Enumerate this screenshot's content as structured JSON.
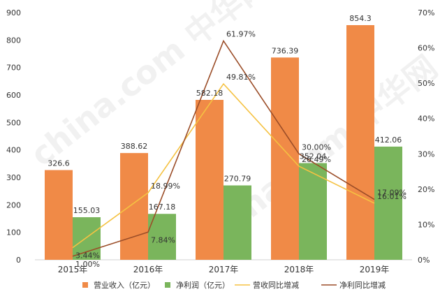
{
  "chart_data": {
    "type": "bar",
    "categories": [
      "2015年",
      "2016年",
      "2017年",
      "2018年",
      "2019年"
    ],
    "series": [
      {
        "name": "营业收入（亿元）",
        "kind": "bar",
        "axis": "left",
        "color": "#F08A47",
        "values": [
          326.6,
          388.62,
          582.18,
          736.39,
          854.3
        ],
        "labels": [
          "326.6",
          "388.62",
          "582.18",
          "736.39",
          "854.3"
        ]
      },
      {
        "name": "净利润（亿元）",
        "kind": "bar",
        "axis": "left",
        "color": "#7AB55C",
        "values": [
          155.03,
          167.18,
          270.79,
          352.04,
          412.06
        ],
        "labels": [
          "155.03",
          "167.18",
          "270.79",
          "352.04",
          "412.06"
        ]
      },
      {
        "name": "营收同比增减",
        "kind": "line",
        "axis": "right",
        "color": "#F5C242",
        "values": [
          3.44,
          18.99,
          49.81,
          26.49,
          16.01
        ],
        "labels": [
          "3.44%",
          "18.99%",
          "49.81%",
          "26.49%",
          "16.01%"
        ]
      },
      {
        "name": "净利同比增减",
        "kind": "line",
        "axis": "right",
        "color": "#9B4D28",
        "values": [
          1.0,
          7.84,
          61.97,
          30.0,
          17.09
        ],
        "labels": [
          "1.00%",
          "7.84%",
          "61.97%",
          "30.00%",
          "17.09%"
        ]
      }
    ],
    "y_left": {
      "ylim": [
        0,
        900
      ],
      "ticks": [
        "0",
        "100",
        "200",
        "300",
        "400",
        "500",
        "600",
        "700",
        "800",
        "900"
      ]
    },
    "y_right": {
      "ylim": [
        0,
        70
      ],
      "ticks": [
        "0%",
        "10%",
        "20%",
        "30%",
        "40%",
        "50%",
        "60%",
        "70%"
      ]
    },
    "grid": false,
    "legend_position": "bottom",
    "watermark": "china.com 中华网"
  }
}
